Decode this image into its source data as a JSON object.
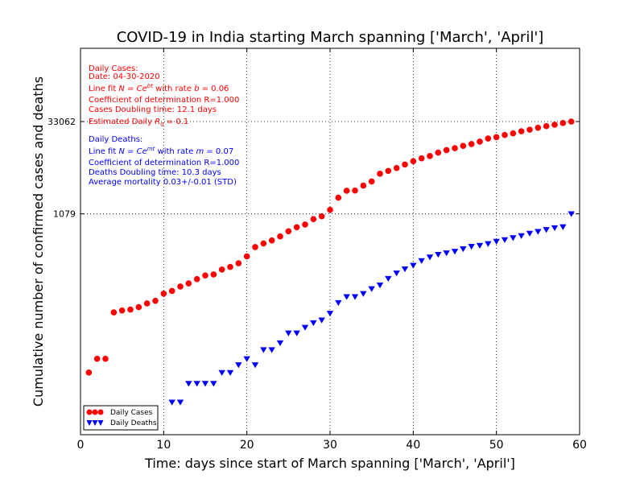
{
  "chart_data": {
    "type": "scatter",
    "title": "COVID-19 in India starting March spanning ['March', 'April']",
    "xlabel": "Time: days since start of March spanning ['March', 'April']",
    "ylabel": "Cumulative number of confirmed cases and deaths",
    "xlim": [
      0,
      60
    ],
    "ylim": [
      0.3,
      500000
    ],
    "yscale": "log",
    "xticks": [
      0,
      10,
      20,
      30,
      40,
      50,
      60
    ],
    "yticks": [
      {
        "value": 1079,
        "label": "1079"
      },
      {
        "value": 33062,
        "label": "33062"
      }
    ],
    "grid": true,
    "legend_placement": "lower-left",
    "series": [
      {
        "name": "Daily Cases",
        "color": "#ff0000",
        "marker": "circle",
        "x": [
          1,
          2,
          3,
          4,
          5,
          6,
          7,
          8,
          9,
          10,
          11,
          12,
          13,
          14,
          15,
          16,
          17,
          18,
          19,
          20,
          21,
          22,
          23,
          24,
          25,
          26,
          27,
          28,
          29,
          30,
          31,
          32,
          33,
          34,
          35,
          36,
          37,
          38,
          39,
          40,
          41,
          42,
          43,
          44,
          45,
          46,
          47,
          48,
          49,
          50,
          51,
          52,
          53,
          54,
          55,
          56,
          57,
          58,
          59
        ],
        "y": [
          3,
          5,
          5,
          28,
          30,
          31,
          34,
          39,
          43,
          56,
          62,
          73,
          82,
          96,
          110,
          114,
          137,
          151,
          173,
          223,
          315,
          360,
          403,
          468,
          566,
          657,
          727,
          887,
          987,
          1251,
          1965,
          2543,
          2567,
          3082,
          3588,
          4778,
          5311,
          5916,
          6725,
          7600,
          8446,
          9205,
          10453,
          11487,
          12322,
          13430,
          14352,
          15722,
          17615,
          18539,
          20080,
          21370,
          23039,
          24447,
          26283,
          27890,
          29451,
          31324,
          33062
        ]
      },
      {
        "name": "Daily Deaths",
        "color": "#0000ff",
        "marker": "triangle-down",
        "x": [
          11,
          12,
          13,
          14,
          15,
          16,
          17,
          18,
          19,
          20,
          21,
          22,
          23,
          24,
          25,
          26,
          27,
          28,
          29,
          30,
          31,
          32,
          33,
          34,
          35,
          36,
          37,
          38,
          39,
          40,
          41,
          42,
          43,
          44,
          45,
          46,
          47,
          48,
          49,
          50,
          51,
          52,
          53,
          54,
          55,
          56,
          57,
          58,
          59
        ],
        "y": [
          1,
          1,
          2,
          2,
          2,
          2,
          3,
          3,
          4,
          5,
          4,
          7,
          7,
          9,
          13,
          13,
          16,
          19,
          21,
          27,
          40,
          50,
          50,
          56,
          67,
          77,
          98,
          120,
          140,
          160,
          190,
          217,
          239,
          253,
          268,
          295,
          322,
          335,
          356,
          388,
          412,
          444,
          479,
          523,
          560,
          601,
          643,
          666,
          1079
        ]
      }
    ],
    "annotations_cases": {
      "heading": "Daily Cases:",
      "date": "Date: 04-30-2020",
      "fit_prefix": "Line fit ",
      "fit_formula": "N = Ce",
      "fit_exponent": "bt",
      "fit_rate_text": " with rate ",
      "fit_rate_var": "b",
      "fit_rate_value": " = 0.06",
      "coef": "Coefficient of determination R=1.000",
      "doubling": "Cases Doubling time: 12.1 days",
      "r0_prefix": "Estimated Daily ",
      "r0_var": "R",
      "r0_sub": "0",
      "r0_value": " = 0.1"
    },
    "annotations_deaths": {
      "heading": "Daily Deaths:",
      "fit_prefix": "Line fit ",
      "fit_formula": "N = Ce",
      "fit_exponent": "mt",
      "fit_rate_text": " with rate ",
      "fit_rate_var": "m",
      "fit_rate_value": " = 0.07",
      "coef": "Coefficient of determination R=1.000",
      "doubling": "Deaths Doubling time: 10.3 days",
      "mortality": "Average mortality 0.03+/-0.01 (STD)"
    }
  }
}
